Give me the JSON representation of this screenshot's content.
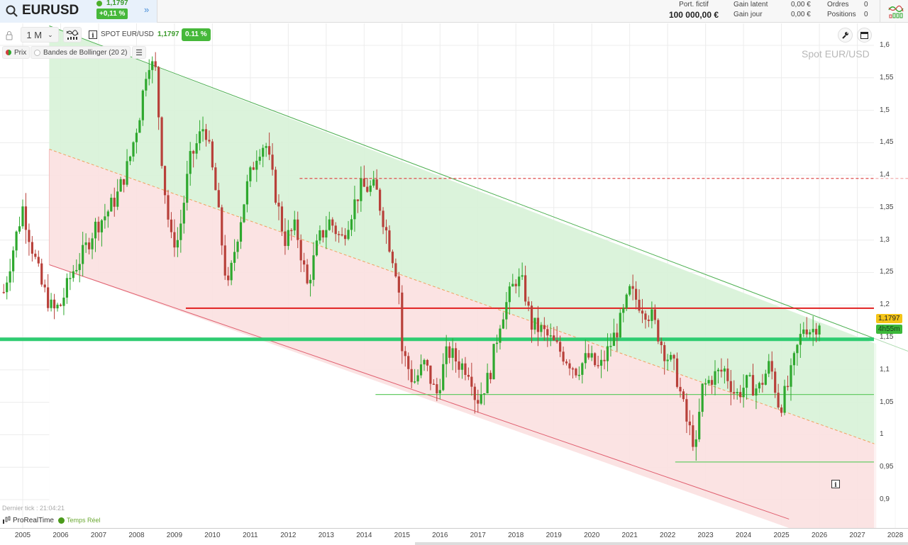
{
  "header": {
    "symbol": "EURUSD",
    "price": "1,1797",
    "change": "+0,11 %",
    "more_icon": "double-chevron-right-icon",
    "portfolio_label": "Port. fictif",
    "portfolio_value": "100 000,00 €",
    "gain_latent_label": "Gain latent",
    "gain_latent_value": "0,00 €",
    "gain_jour_label": "Gain jour",
    "gain_jour_value": "0,00 €",
    "ordres_label": "Ordres",
    "ordres_value": "0",
    "positions_label": "Positions",
    "positions_value": "0"
  },
  "toolbar": {
    "timeframe": "1 M",
    "instrument": "SPOT EUR/USD",
    "price": "1,1797",
    "change": "0.11 %",
    "watermark": "Spot EUR/USD"
  },
  "legend": {
    "price_label": "Prix",
    "bollinger_label": "Bandes de Bollinger (20 2)"
  },
  "footer": {
    "last_tick": "Dernier tick : 21:04:21",
    "brand": "ProRealTime",
    "realtime": "Temps Réel"
  },
  "tags": {
    "current_price": "1,1797",
    "countdown": "4h55m"
  },
  "colors": {
    "up": "#2ea82e",
    "down": "#b8403a",
    "upper_zone": "#d9f2d9",
    "lower_zone": "#fbe1e1",
    "resistance_red": "#e02020",
    "support_green": "#2ecc71"
  },
  "chart_data": {
    "type": "candlestick",
    "instrument": "Spot EUR/USD",
    "timeframe": "1 M",
    "yaxis_ticks": [
      "1,6",
      "1,55",
      "1,5",
      "1,45",
      "1,4",
      "1,35",
      "1,3",
      "1,25",
      "1,2",
      "1,15",
      "1,1",
      "1,05",
      "1",
      "0,95",
      "0,9"
    ],
    "xaxis_ticks": [
      "2005",
      "2006",
      "2007",
      "2008",
      "2009",
      "2010",
      "2011",
      "2012",
      "2013",
      "2014",
      "2015",
      "2016",
      "2017",
      "2018",
      "2019",
      "2020",
      "2021",
      "2022",
      "2023",
      "2024",
      "2025",
      "2026",
      "2027",
      "2028"
    ],
    "ylim": [
      0.87,
      1.61
    ],
    "last_price": 1.1797,
    "horizontal_lines": [
      {
        "price": 1.395,
        "style": "dashed",
        "color": "#e05050",
        "from": 2012.3
      },
      {
        "price": 1.195,
        "style": "solid",
        "color": "#e02020",
        "from": 2009.3
      },
      {
        "price": 1.147,
        "style": "solid-thick",
        "color": "#2ecc71",
        "from": 2004.4
      },
      {
        "price": 1.062,
        "style": "solid",
        "color": "#66cc66",
        "from": 2014.3
      },
      {
        "price": 0.958,
        "style": "solid",
        "color": "#66cc66",
        "from": 2022.2
      }
    ],
    "channel": {
      "upper": {
        "x1": 2005.7,
        "y1": 1.63,
        "x2": 2027.5,
        "y2": 1.14
      },
      "mid": {
        "x1": 2005.7,
        "y1": 1.44,
        "x2": 2027.5,
        "y2": 0.985
      },
      "lower": {
        "x1": 2005.7,
        "y1": 1.262,
        "x2": 2025.2,
        "y2": 0.87
      }
    },
    "monthly_close_path": [
      [
        2004.5,
        1.22
      ],
      [
        2004.8,
        1.3
      ],
      [
        2005.0,
        1.35
      ],
      [
        2005.2,
        1.3
      ],
      [
        2005.5,
        1.23
      ],
      [
        2005.8,
        1.19
      ],
      [
        2006.0,
        1.2
      ],
      [
        2006.3,
        1.25
      ],
      [
        2006.6,
        1.28
      ],
      [
        2006.9,
        1.32
      ],
      [
        2007.2,
        1.34
      ],
      [
        2007.5,
        1.37
      ],
      [
        2007.8,
        1.42
      ],
      [
        2008.1,
        1.5
      ],
      [
        2008.3,
        1.58
      ],
      [
        2008.5,
        1.56
      ],
      [
        2008.7,
        1.4
      ],
      [
        2008.9,
        1.3
      ],
      [
        2009.1,
        1.3
      ],
      [
        2009.4,
        1.42
      ],
      [
        2009.8,
        1.48
      ],
      [
        2010.1,
        1.37
      ],
      [
        2010.4,
        1.22
      ],
      [
        2010.6,
        1.29
      ],
      [
        2010.9,
        1.38
      ],
      [
        2011.2,
        1.44
      ],
      [
        2011.4,
        1.45
      ],
      [
        2011.7,
        1.36
      ],
      [
        2011.9,
        1.3
      ],
      [
        2012.2,
        1.32
      ],
      [
        2012.5,
        1.23
      ],
      [
        2012.8,
        1.3
      ],
      [
        2013.1,
        1.33
      ],
      [
        2013.4,
        1.3
      ],
      [
        2013.7,
        1.35
      ],
      [
        2013.9,
        1.38
      ],
      [
        2014.3,
        1.38
      ],
      [
        2014.6,
        1.31
      ],
      [
        2014.9,
        1.24
      ],
      [
        2015.0,
        1.13
      ],
      [
        2015.3,
        1.08
      ],
      [
        2015.6,
        1.11
      ],
      [
        2015.9,
        1.06
      ],
      [
        2016.2,
        1.13
      ],
      [
        2016.5,
        1.11
      ],
      [
        2016.8,
        1.1
      ],
      [
        2016.95,
        1.05
      ],
      [
        2017.3,
        1.09
      ],
      [
        2017.6,
        1.18
      ],
      [
        2018.0,
        1.24
      ],
      [
        2018.2,
        1.23
      ],
      [
        2018.4,
        1.17
      ],
      [
        2018.7,
        1.16
      ],
      [
        2019.0,
        1.14
      ],
      [
        2019.3,
        1.12
      ],
      [
        2019.6,
        1.1
      ],
      [
        2019.9,
        1.12
      ],
      [
        2020.2,
        1.1
      ],
      [
        2020.5,
        1.14
      ],
      [
        2020.8,
        1.18
      ],
      [
        2021.0,
        1.22
      ],
      [
        2021.3,
        1.2
      ],
      [
        2021.6,
        1.18
      ],
      [
        2021.9,
        1.13
      ],
      [
        2022.2,
        1.1
      ],
      [
        2022.5,
        1.02
      ],
      [
        2022.75,
        0.98
      ],
      [
        2022.9,
        1.07
      ],
      [
        2023.2,
        1.09
      ],
      [
        2023.5,
        1.1
      ],
      [
        2023.8,
        1.06
      ],
      [
        2024.1,
        1.08
      ],
      [
        2024.4,
        1.07
      ],
      [
        2024.7,
        1.11
      ],
      [
        2024.95,
        1.04
      ],
      [
        2025.2,
        1.08
      ],
      [
        2025.4,
        1.13
      ],
      [
        2025.6,
        1.17
      ],
      [
        2025.8,
        1.16
      ],
      [
        2026.05,
        1.1797
      ]
    ]
  }
}
